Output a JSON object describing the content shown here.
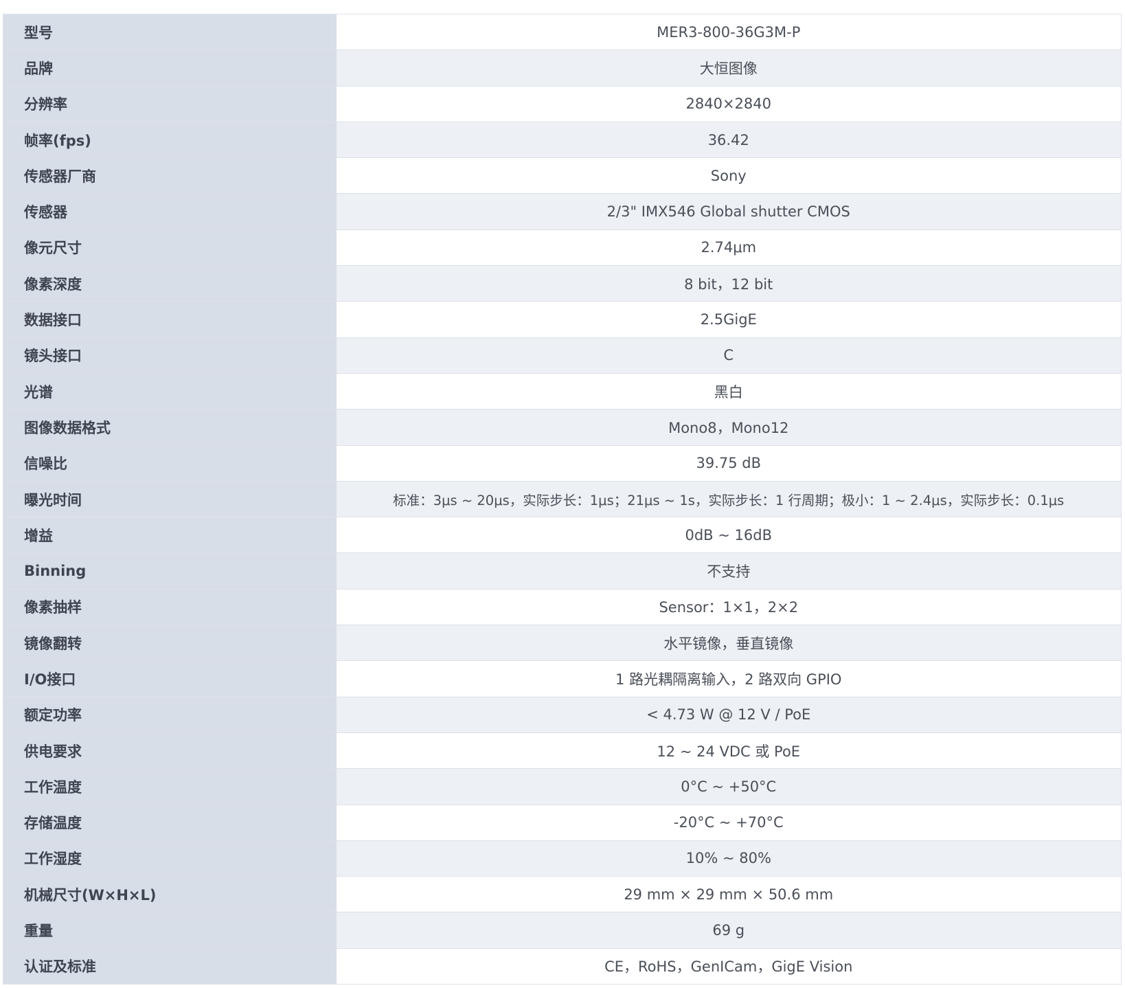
{
  "spec_table": {
    "rows": [
      {
        "key": "型号",
        "value": "MER3-800-36G3M-P"
      },
      {
        "key": "品牌",
        "value": "大恒图像"
      },
      {
        "key": "分辨率",
        "value": "2840×2840"
      },
      {
        "key": "帧率(fps)",
        "value": "36.42"
      },
      {
        "key": "传感器厂商",
        "value": "Sony"
      },
      {
        "key": "传感器",
        "value": "2/3\" IMX546 Global shutter CMOS"
      },
      {
        "key": "像元尺寸",
        "value": "2.74μm"
      },
      {
        "key": "像素深度",
        "value": "8 bit，12 bit"
      },
      {
        "key": "数据接口",
        "value": "2.5GigE"
      },
      {
        "key": "镜头接口",
        "value": "C"
      },
      {
        "key": "光谱",
        "value": "黑白"
      },
      {
        "key": "图像数据格式",
        "value": "Mono8，Mono12"
      },
      {
        "key": "信噪比",
        "value": "39.75 dB"
      },
      {
        "key": "曝光时间",
        "value": "标准：3μs ~ 20μs，实际步长：1μs；21μs ~ 1s，实际步长：1 行周期；极小：1 ~ 2.4μs，实际步长：0.1μs"
      },
      {
        "key": "增益",
        "value": "0dB ~ 16dB"
      },
      {
        "key": "Binning",
        "value": "不支持"
      },
      {
        "key": "像素抽样",
        "value": "Sensor：1×1，2×2"
      },
      {
        "key": "镜像翻转",
        "value": "水平镜像，垂直镜像"
      },
      {
        "key": "I/O接口",
        "value": "1 路光耦隔离输入，2 路双向 GPIO"
      },
      {
        "key": "额定功率",
        "value": "< 4.73 W @ 12 V / PoE"
      },
      {
        "key": "供电要求",
        "value": "12 ~ 24 VDC 或 PoE"
      },
      {
        "key": "工作温度",
        "value": "0°C ~ +50°C"
      },
      {
        "key": "存储温度",
        "value": "-20°C ~ +70°C"
      },
      {
        "key": "工作湿度",
        "value": "10% ~ 80%"
      },
      {
        "key": "机械尺寸(W×H×L)",
        "value": "29 mm × 29 mm × 50.6 mm"
      },
      {
        "key": "重量",
        "value": "69 g"
      },
      {
        "key": "认证及标准",
        "value": "CE，RoHS，GenICam，GigE Vision"
      }
    ]
  }
}
